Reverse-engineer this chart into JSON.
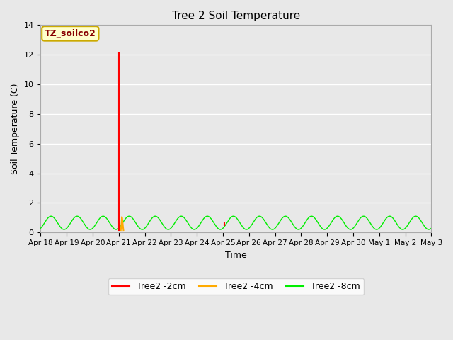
{
  "title": "Tree 2 Soil Temperature",
  "xlabel": "Time",
  "ylabel": "Soil Temperature (C)",
  "ylim": [
    0,
    14
  ],
  "yticks": [
    0,
    2,
    4,
    6,
    8,
    10,
    12,
    14
  ],
  "annotation_label": "TZ_soilco2",
  "annotation_color": "#880000",
  "annotation_bg": "#ffffcc",
  "annotation_border": "#ccaa00",
  "xtick_labels": [
    "Apr 18",
    "Apr 19",
    "Apr 20",
    "Apr 21",
    "Apr 22",
    "Apr 23",
    "Apr 24",
    "Apr 25",
    "Apr 26",
    "Apr 27",
    "Apr 28",
    "Apr 29",
    "Apr 30",
    "May 1",
    "May 2",
    "May 3"
  ],
  "bg_color": "#e8e8e8",
  "grid_color": "#ffffff",
  "line_2cm_color": "#ff0000",
  "line_4cm_color": "#ffaa00",
  "line_8cm_color": "#00ee00",
  "vline_x": 3.0,
  "legend_labels": [
    "Tree2 -2cm",
    "Tree2 -4cm",
    "Tree2 -8cm"
  ],
  "fig_bg": "#e8e8e8"
}
